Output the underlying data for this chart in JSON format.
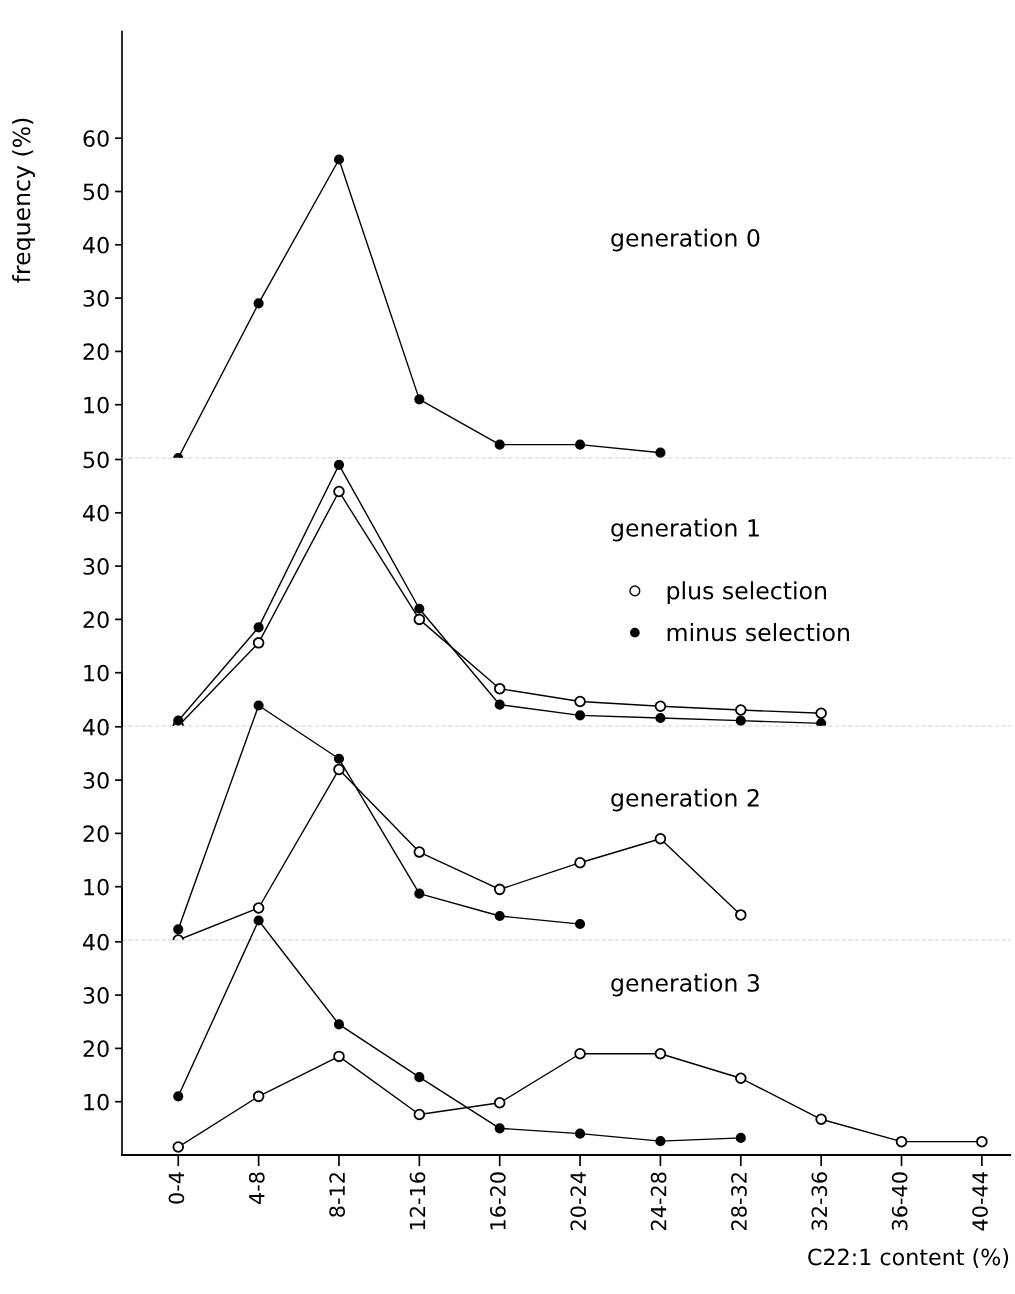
{
  "chart_data": [
    {
      "type": "line",
      "title": "generation 0",
      "ylabel": "frequency (%)",
      "categories": [
        null,
        null,
        null,
        null,
        null,
        null,
        null,
        null,
        null,
        null,
        null
      ],
      "ylim": [
        0,
        80
      ],
      "yticks": [
        10,
        20,
        30,
        40,
        50,
        60
      ],
      "tick_labels": "y",
      "grid": false,
      "legend": false,
      "series": [
        {
          "color": "#000000",
          "marker": "circle",
          "values": [
            0,
            29,
            56,
            11,
            2.5,
            2.5,
            1,
            null,
            null,
            null,
            null
          ]
        }
      ]
    },
    {
      "type": "line",
      "title": "generation 1",
      "categories": [
        null,
        null,
        null,
        null,
        null,
        null,
        null,
        null,
        null,
        null,
        null
      ],
      "ylim": [
        0,
        50
      ],
      "yticks": [
        10,
        20,
        30,
        40,
        50
      ],
      "tick_labels": "y",
      "grid": false,
      "legend": "right",
      "series": [
        {
          "name": "plus selection",
          "color": "#000000",
          "marker": "open circle",
          "values": [
            0,
            15.6,
            44,
            20,
            7,
            4.6,
            3.7,
            3,
            2.4,
            null,
            null
          ]
        },
        {
          "name": "minus selection",
          "color": "#000000",
          "marker": "circle",
          "values": [
            1,
            18.5,
            49,
            22,
            4,
            2,
            1.5,
            1,
            0.5,
            null,
            null
          ]
        }
      ]
    },
    {
      "type": "line",
      "title": "generation 2",
      "categories": [
        null,
        null,
        null,
        null,
        null,
        null,
        null,
        null,
        null,
        null,
        null
      ],
      "ylim": [
        0,
        50
      ],
      "yticks": [
        10,
        20,
        30,
        40
      ],
      "tick_labels": "y",
      "grid": false,
      "legend": false,
      "series": [
        {
          "color": "#000000",
          "marker": "open circle",
          "values": [
            0,
            6,
            32,
            16.5,
            9.5,
            14.5,
            19,
            4.7,
            null,
            null,
            null
          ]
        },
        {
          "color": "#000000",
          "marker": "circle",
          "values": [
            2,
            44,
            34,
            8.7,
            4.5,
            3,
            null,
            null,
            null,
            null,
            null
          ]
        }
      ]
    },
    {
      "type": "line",
      "title": "generation 3",
      "xlabel": "C22:1 content (%)",
      "categories": [
        "0-4",
        "4-8",
        "8-12",
        "12-16",
        "16-20",
        "20-24",
        "24-28",
        "28-32",
        "32-36",
        "36-40",
        "40-44"
      ],
      "ylim": [
        0,
        50
      ],
      "yticks": [
        10,
        20,
        30,
        40
      ],
      "grid": false,
      "legend": false,
      "series": [
        {
          "color": "#000000",
          "marker": "open circle",
          "values": [
            1.5,
            11,
            18.5,
            7.6,
            9.8,
            19,
            19,
            14.4,
            6.7,
            2.5,
            2.5
          ]
        },
        {
          "color": "#000000",
          "marker": "circle",
          "values": [
            11,
            44,
            24.5,
            14.6,
            5,
            4,
            2.6,
            3.2,
            null,
            null,
            null
          ]
        }
      ]
    }
  ]
}
